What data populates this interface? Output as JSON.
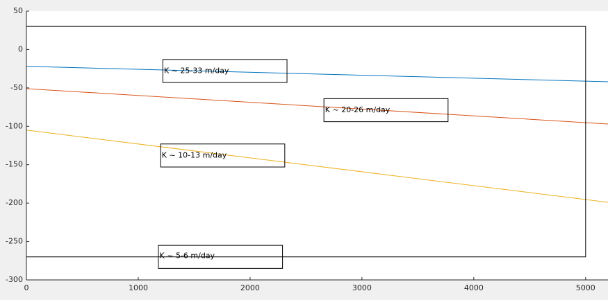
{
  "chart_data": {
    "type": "line",
    "title": "",
    "xlabel": "",
    "ylabel": "",
    "xlim": [
      0,
      5200
    ],
    "ylim": [
      -300,
      50
    ],
    "x_ticks": [
      0,
      1000,
      2000,
      3000,
      4000,
      5000
    ],
    "y_ticks": [
      50,
      0,
      -50,
      -100,
      -150,
      -200,
      -250,
      -300
    ],
    "grid": false,
    "series": [
      {
        "color": "#0072bd",
        "x": [
          0,
          5200
        ],
        "y": [
          -22,
          -42
        ]
      },
      {
        "color": "#d95319",
        "x": [
          0,
          5200
        ],
        "y": [
          -51,
          -97
        ]
      },
      {
        "color": "#edb120",
        "x": [
          0,
          5200
        ],
        "y": [
          -105,
          -199
        ]
      }
    ],
    "domain_rectangle": {
      "x": [
        0,
        5000
      ],
      "y": [
        -270,
        30
      ],
      "color": "#000000"
    },
    "annotations": [
      {
        "text": "K ~ 25-33 m/day",
        "x": 1230,
        "y": -28,
        "box_x": [
          1220,
          2330
        ],
        "box_y": [
          -43,
          -13
        ]
      },
      {
        "text": "K ~ 20-26 m/day",
        "x": 2670,
        "y": -79,
        "box_x": [
          2660,
          3770
        ],
        "box_y": [
          -94,
          -64
        ]
      },
      {
        "text": "K ~ 10-13 m/day",
        "x": 1210,
        "y": -138,
        "box_x": [
          1200,
          2310
        ],
        "box_y": [
          -153,
          -123
        ]
      },
      {
        "text": "K ~ 5-6 m/day",
        "x": 1190,
        "y": -269,
        "box_x": [
          1180,
          2290
        ],
        "box_y": [
          -285,
          -255
        ]
      }
    ]
  }
}
